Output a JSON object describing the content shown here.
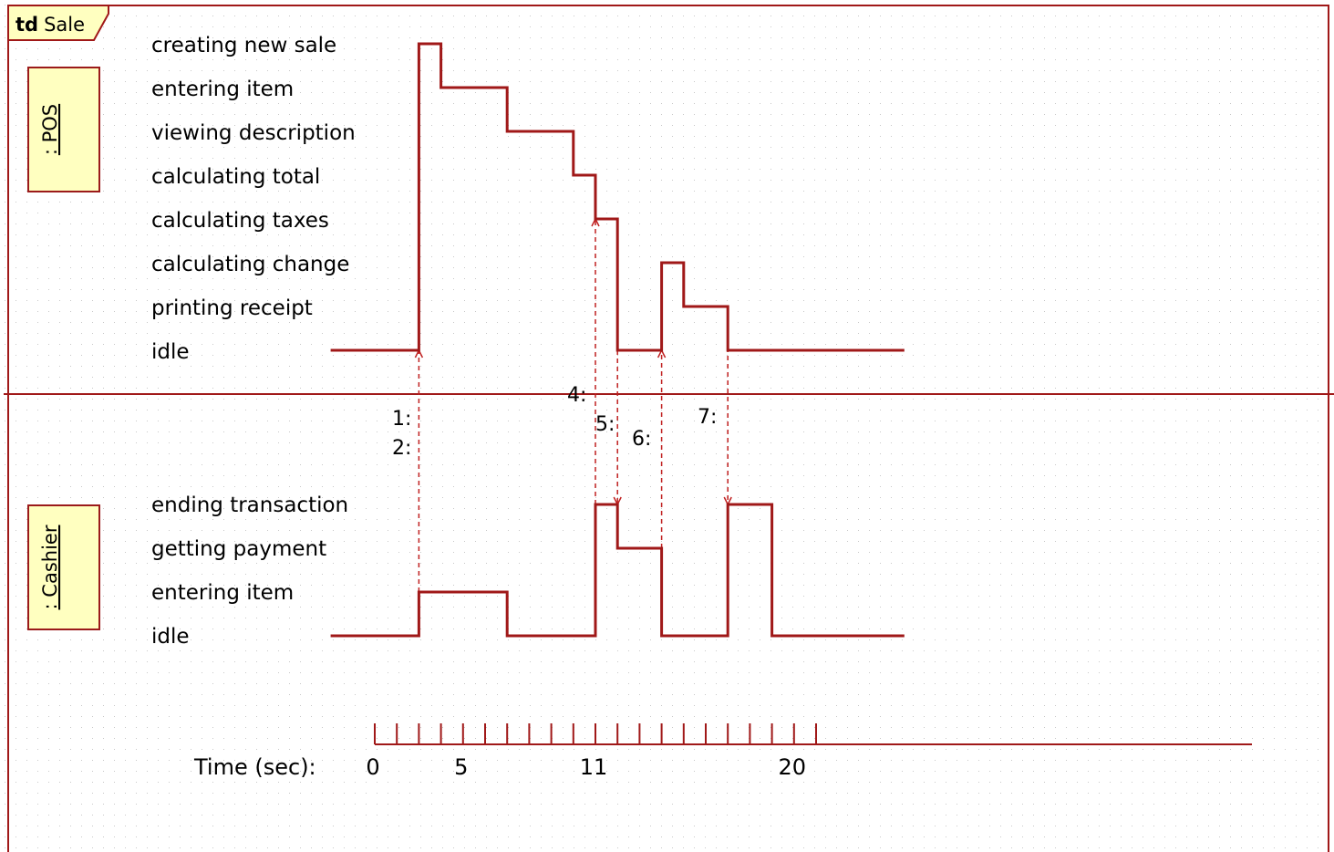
{
  "frame": {
    "keyword": "td",
    "name": "Sale"
  },
  "colors": {
    "line": "#a01818",
    "dashed": "#c02020",
    "lifeline_fill": "#ffffc0",
    "lifeline_border": "#9b1a1a",
    "grid_dot": "#c8c8c8",
    "tab_fill": "#ffffc0"
  },
  "lifelines": [
    {
      "name": ": POS",
      "states": [
        "creating new sale",
        "entering item",
        "viewing description",
        "calculating total",
        "calculating taxes",
        "calculating change",
        "printing receipt",
        "idle"
      ],
      "timeline": [
        {
          "t": -2,
          "state": "idle"
        },
        {
          "t": 2,
          "state": "creating new sale"
        },
        {
          "t": 3,
          "state": "entering item"
        },
        {
          "t": 6,
          "state": "viewing description"
        },
        {
          "t": 9,
          "state": "calculating total"
        },
        {
          "t": 10,
          "state": "calculating taxes"
        },
        {
          "t": 11,
          "state": "idle"
        },
        {
          "t": 13,
          "state": "calculating change"
        },
        {
          "t": 14,
          "state": "printing receipt"
        },
        {
          "t": 16,
          "state": "idle"
        },
        {
          "t": 24,
          "state": "idle"
        }
      ]
    },
    {
      "name": ": Cashier",
      "states": [
        "ending transaction",
        "getting payment",
        "entering item",
        "idle"
      ],
      "timeline": [
        {
          "t": -2,
          "state": "idle"
        },
        {
          "t": 2,
          "state": "entering item"
        },
        {
          "t": 6,
          "state": "idle"
        },
        {
          "t": 10,
          "state": "ending transaction"
        },
        {
          "t": 11,
          "state": "getting payment"
        },
        {
          "t": 13,
          "state": "idle"
        },
        {
          "t": 16,
          "state": "ending transaction"
        },
        {
          "t": 18,
          "state": "idle"
        },
        {
          "t": 24,
          "state": "idle"
        }
      ]
    }
  ],
  "messages": [
    {
      "label": "1:",
      "t": 2,
      "from": ": Cashier",
      "to": ": POS"
    },
    {
      "label": "2:",
      "t": 2,
      "from": ": Cashier",
      "to": ": POS"
    },
    {
      "label": "4:",
      "t": 10,
      "from": ": Cashier",
      "to": ": POS"
    },
    {
      "label": "5:",
      "t": 11,
      "from": ": POS",
      "to": ": Cashier"
    },
    {
      "label": "6:",
      "t": 13,
      "from": ": Cashier",
      "to": ": POS"
    },
    {
      "label": "7:",
      "t": 16,
      "from": ": POS",
      "to": ": Cashier"
    }
  ],
  "axis": {
    "label": "Time (sec):",
    "tick_count": 20,
    "tick_labels": [
      {
        "t": 0,
        "text": "0"
      },
      {
        "t": 4,
        "text": "5"
      },
      {
        "t": 10,
        "text": "11"
      },
      {
        "t": 19,
        "text": "20"
      }
    ]
  }
}
